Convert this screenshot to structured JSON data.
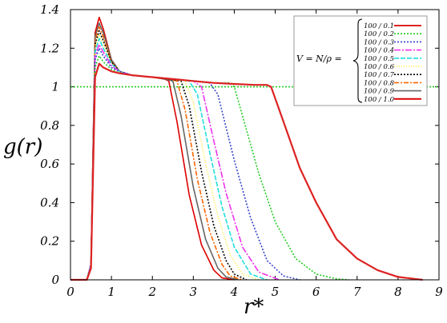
{
  "chart_data": {
    "type": "line",
    "xlabel": "r*",
    "ylabel": "g(r)",
    "xlim": [
      0,
      9
    ],
    "ylim": [
      0,
      1.4
    ],
    "x_ticks": [
      "0",
      "1",
      "2",
      "3",
      "4",
      "5",
      "6",
      "7",
      "8",
      "9"
    ],
    "y_ticks": [
      "0",
      "0.2",
      "0.4",
      "0.6",
      "0.8",
      "1",
      "1.2",
      "1.4"
    ],
    "grid": false,
    "legend_position": "top-right",
    "legend_title": "V = N/ρ =",
    "reference_line": {
      "y": 1.0,
      "color": "#22cc22",
      "style": "dotted"
    },
    "series": [
      {
        "name": "100 / 0.1",
        "color": "#dd2222",
        "dash": "solid",
        "x": [
          0.0,
          0.4,
          0.5,
          0.6,
          0.7,
          0.8,
          1.0,
          1.2,
          1.5,
          2.0,
          2.5,
          3.0,
          3.5,
          4.0,
          4.5,
          4.8,
          4.9,
          5.2,
          5.6,
          6.0,
          6.5,
          7.0,
          7.5,
          8.0,
          8.6
        ],
        "y": [
          0.0,
          0.0,
          0.06,
          1.05,
          1.12,
          1.1,
          1.08,
          1.07,
          1.06,
          1.05,
          1.04,
          1.03,
          1.02,
          1.015,
          1.01,
          1.01,
          1.0,
          0.82,
          0.58,
          0.4,
          0.21,
          0.11,
          0.05,
          0.015,
          0.0
        ]
      },
      {
        "name": "100 / 0.2",
        "color": "#22cc22",
        "dash": "2,2",
        "x": [
          0.0,
          0.4,
          0.5,
          0.6,
          0.7,
          0.8,
          1.0,
          1.2,
          1.5,
          2.0,
          2.5,
          3.0,
          3.5,
          3.9,
          4.0,
          4.2,
          4.6,
          5.0,
          5.5,
          6.0,
          6.5,
          6.8
        ],
        "y": [
          0.0,
          0.0,
          0.07,
          1.1,
          1.16,
          1.13,
          1.09,
          1.07,
          1.06,
          1.05,
          1.04,
          1.03,
          1.02,
          1.02,
          1.0,
          0.85,
          0.55,
          0.3,
          0.11,
          0.03,
          0.005,
          0.0
        ]
      },
      {
        "name": "100 / 0.3",
        "color": "#3344cc",
        "dash": "2,2",
        "x": [
          0.0,
          0.4,
          0.5,
          0.6,
          0.7,
          0.8,
          1.0,
          1.2,
          1.5,
          2.0,
          2.5,
          3.0,
          3.4,
          3.6,
          4.0,
          4.4,
          4.8,
          5.2,
          5.6
        ],
        "y": [
          0.0,
          0.0,
          0.08,
          1.14,
          1.2,
          1.16,
          1.1,
          1.08,
          1.06,
          1.05,
          1.04,
          1.03,
          1.02,
          0.96,
          0.62,
          0.32,
          0.1,
          0.02,
          0.0
        ]
      },
      {
        "name": "100 / 0.4",
        "color": "#ee33ee",
        "dash": "8,2,2,2",
        "x": [
          0.0,
          0.4,
          0.5,
          0.6,
          0.7,
          0.8,
          1.0,
          1.2,
          1.5,
          2.0,
          2.5,
          3.0,
          3.2,
          3.5,
          3.8,
          4.2,
          4.6,
          5.1
        ],
        "y": [
          0.0,
          0.0,
          0.08,
          1.16,
          1.22,
          1.18,
          1.11,
          1.08,
          1.06,
          1.05,
          1.04,
          1.03,
          1.0,
          0.72,
          0.45,
          0.17,
          0.04,
          0.0
        ]
      },
      {
        "name": "100 / 0.5",
        "color": "#22dddd",
        "dash": "6,2",
        "x": [
          0.0,
          0.4,
          0.5,
          0.6,
          0.7,
          0.8,
          1.0,
          1.2,
          1.5,
          2.0,
          2.5,
          2.9,
          3.1,
          3.4,
          3.7,
          4.0,
          4.4,
          4.8
        ],
        "y": [
          0.0,
          0.0,
          0.08,
          1.18,
          1.25,
          1.2,
          1.12,
          1.08,
          1.06,
          1.05,
          1.04,
          1.03,
          0.96,
          0.66,
          0.38,
          0.17,
          0.03,
          0.0
        ]
      },
      {
        "name": "100 / 0.6",
        "color": "#ffee33",
        "dash": "1,2",
        "x": [
          0.0,
          0.4,
          0.5,
          0.6,
          0.7,
          0.8,
          1.0,
          1.2,
          1.5,
          2.0,
          2.5,
          2.8,
          3.0,
          3.3,
          3.6,
          3.9,
          4.2,
          4.6
        ],
        "y": [
          0.0,
          0.0,
          0.08,
          1.2,
          1.27,
          1.22,
          1.12,
          1.08,
          1.06,
          1.05,
          1.04,
          1.03,
          0.92,
          0.6,
          0.33,
          0.13,
          0.03,
          0.0
        ]
      },
      {
        "name": "100 / 0.7",
        "color": "#000000",
        "dash": "2,2",
        "x": [
          0.0,
          0.4,
          0.5,
          0.6,
          0.7,
          0.8,
          1.0,
          1.2,
          1.5,
          2.0,
          2.4,
          2.7,
          2.9,
          3.2,
          3.5,
          3.8,
          4.0,
          4.3
        ],
        "y": [
          0.0,
          0.0,
          0.08,
          1.22,
          1.29,
          1.24,
          1.13,
          1.08,
          1.06,
          1.05,
          1.04,
          1.03,
          0.9,
          0.56,
          0.28,
          0.1,
          0.03,
          0.0
        ]
      },
      {
        "name": "100 / 0.8",
        "color": "#ff6600",
        "dash": "6,2,2,2",
        "x": [
          0.0,
          0.4,
          0.5,
          0.6,
          0.7,
          0.8,
          1.0,
          1.2,
          1.5,
          2.0,
          2.4,
          2.6,
          2.8,
          3.1,
          3.4,
          3.7,
          3.9,
          4.2
        ],
        "y": [
          0.0,
          0.0,
          0.08,
          1.24,
          1.31,
          1.26,
          1.13,
          1.08,
          1.06,
          1.05,
          1.04,
          1.03,
          0.88,
          0.52,
          0.25,
          0.08,
          0.02,
          0.0
        ]
      },
      {
        "name": "100 / 0.9",
        "color": "#666666",
        "dash": "solid",
        "x": [
          0.0,
          0.4,
          0.5,
          0.6,
          0.7,
          0.8,
          1.0,
          1.2,
          1.5,
          2.0,
          2.3,
          2.5,
          2.7,
          3.0,
          3.3,
          3.6,
          3.8,
          4.1
        ],
        "y": [
          0.0,
          0.0,
          0.08,
          1.26,
          1.33,
          1.28,
          1.14,
          1.08,
          1.06,
          1.05,
          1.04,
          1.03,
          0.85,
          0.48,
          0.21,
          0.06,
          0.015,
          0.0
        ]
      },
      {
        "name": "100 / 1.0",
        "color": "#dd0000",
        "dash": "solid",
        "x": [
          0.0,
          0.4,
          0.5,
          0.6,
          0.7,
          0.8,
          1.0,
          1.2,
          1.5,
          2.0,
          2.3,
          2.4,
          2.6,
          2.9,
          3.2,
          3.5,
          3.7,
          4.0
        ],
        "y": [
          0.0,
          0.0,
          0.08,
          1.28,
          1.36,
          1.3,
          1.14,
          1.08,
          1.06,
          1.05,
          1.04,
          1.03,
          0.82,
          0.44,
          0.18,
          0.05,
          0.01,
          0.0
        ]
      }
    ]
  }
}
